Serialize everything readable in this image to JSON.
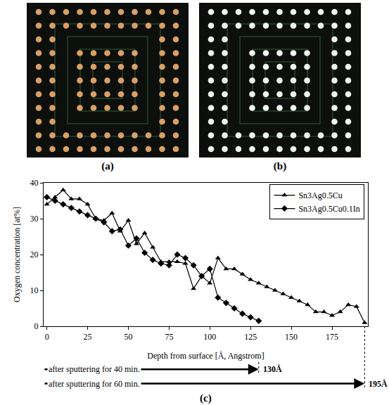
{
  "panels": [
    {
      "label": "(a)",
      "type": "photo",
      "color": "#d9a066"
    },
    {
      "label": "(b)",
      "type": "photo",
      "color": "#f2f2f2"
    }
  ],
  "chart_data": {
    "type": "line",
    "panel_label": "(c)",
    "x_label": "Depth from surface [Å, Angstrom]",
    "y_label": "Oxygen concentration [at%]",
    "series": [
      {
        "name": "Sn3Ag0.5Cu",
        "color": "#000000",
        "marker": "triangle-up",
        "x": [
          0,
          5,
          10,
          15,
          20,
          25,
          30,
          35,
          40,
          45,
          50,
          55,
          60,
          65,
          70,
          75,
          80,
          85,
          90,
          95,
          100,
          105,
          110,
          115,
          120,
          125,
          130,
          135,
          140,
          145,
          150,
          155,
          160,
          165,
          170,
          175,
          180,
          185,
          190,
          195
        ],
        "values": [
          34,
          36,
          38,
          35.5,
          35.5,
          34,
          30,
          29.5,
          31.5,
          26.5,
          29.5,
          23,
          26,
          22,
          18,
          18,
          18,
          17.5,
          10.5,
          14,
          12,
          19,
          16,
          16,
          14.5,
          13,
          12,
          11,
          10,
          9,
          8,
          7,
          6,
          4,
          4,
          3,
          4,
          6,
          5.5,
          1
        ]
      },
      {
        "name": "Sn3Ag0.5Cu0.1In",
        "color": "#000000",
        "marker": "diamond",
        "x": [
          0,
          5,
          10,
          15,
          20,
          25,
          30,
          35,
          40,
          45,
          50,
          55,
          60,
          65,
          70,
          75,
          80,
          85,
          90,
          95,
          100,
          105,
          110,
          115,
          120,
          125,
          130
        ],
        "values": [
          36,
          35,
          34,
          33,
          32,
          31,
          30,
          29,
          26.5,
          27,
          22.5,
          24.5,
          20.5,
          18.5,
          17.5,
          17,
          20,
          19,
          17,
          14,
          16,
          8,
          6.5,
          5,
          3.5,
          2.5,
          1.5
        ]
      }
    ],
    "xlim": [
      -2,
      197
    ],
    "xticks": [
      0,
      25,
      50,
      75,
      100,
      125,
      150,
      175
    ],
    "ylim": [
      0,
      40
    ],
    "yticks": [
      0,
      10,
      20,
      30,
      40
    ],
    "grid": false,
    "legend": "top right",
    "annotations": [
      {
        "text": "after sputtering for 40 min.",
        "x": 130,
        "label": "130Å"
      },
      {
        "text": "after sputtering for 60 min.",
        "x": 195,
        "label": "195Å"
      }
    ]
  }
}
